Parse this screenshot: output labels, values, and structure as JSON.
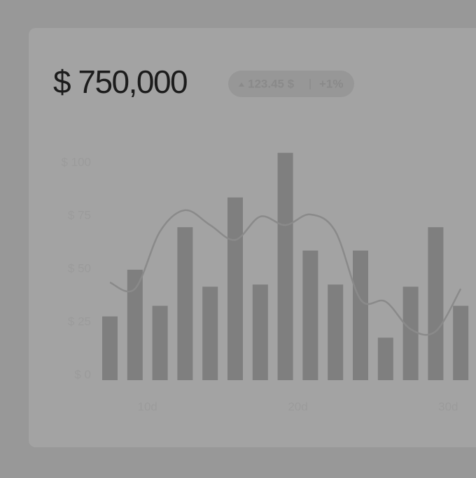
{
  "header": {
    "title": "$ 750,000",
    "badge": {
      "change": "123.45 $",
      "percent": "+1%"
    }
  },
  "chart_data": {
    "type": "bar",
    "categories": [
      null,
      "10d",
      null,
      null,
      null,
      null,
      null,
      "20d",
      null,
      null,
      null,
      null,
      null,
      "30d",
      null
    ],
    "series": [
      {
        "type": "bar",
        "color": "#7f7f7f",
        "values": [
          30,
          52,
          35,
          72,
          44,
          86,
          45,
          107,
          61,
          45,
          61,
          20,
          44,
          72,
          35
        ]
      },
      {
        "type": "line",
        "color": "#8a8a8a",
        "values": [
          46,
          43,
          70,
          80,
          73,
          66,
          77,
          73,
          78,
          70,
          38,
          37,
          24,
          23,
          43
        ]
      }
    ],
    "ylim": [
      0,
      100
    ],
    "yticks": [
      {
        "value": 0,
        "label": "$ 0"
      },
      {
        "value": 25,
        "label": "$ 25"
      },
      {
        "value": 50,
        "label": "$ 50"
      },
      {
        "value": 75,
        "label": "$ 75"
      },
      {
        "value": 100,
        "label": "$ 100"
      }
    ]
  }
}
